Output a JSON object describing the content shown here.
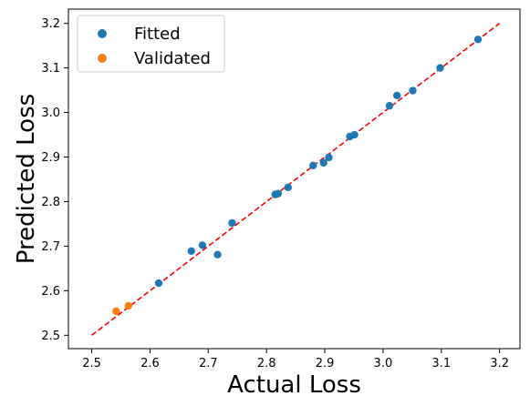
{
  "chart_data": {
    "type": "scatter",
    "title": "",
    "xlabel": "Actual Loss",
    "ylabel": "Predicted Loss",
    "xlim": [
      2.46,
      3.235
    ],
    "ylim": [
      2.47,
      3.232
    ],
    "xticks": [
      "2.5",
      "2.6",
      "2.7",
      "2.8",
      "2.9",
      "3.0",
      "3.1",
      "3.2"
    ],
    "yticks": [
      "2.5",
      "2.6",
      "2.7",
      "2.8",
      "2.9",
      "3.0",
      "3.1",
      "3.2"
    ],
    "grid": false,
    "legend_position": "top-left",
    "reference_line": {
      "x": [
        2.5,
        3.2
      ],
      "y": [
        2.5,
        3.2
      ],
      "color": "#ff0000",
      "style": "dashed"
    },
    "series": [
      {
        "name": "Fitted",
        "color": "#1f77b4",
        "points": [
          [
            2.615,
            2.617
          ],
          [
            2.671,
            2.689
          ],
          [
            2.69,
            2.702
          ],
          [
            2.716,
            2.681
          ],
          [
            2.741,
            2.752
          ],
          [
            2.815,
            2.816
          ],
          [
            2.82,
            2.818
          ],
          [
            2.837,
            2.832
          ],
          [
            2.88,
            2.881
          ],
          [
            2.898,
            2.887
          ],
          [
            2.907,
            2.899
          ],
          [
            2.943,
            2.946
          ],
          [
            2.951,
            2.95
          ],
          [
            3.011,
            3.015
          ],
          [
            3.024,
            3.038
          ],
          [
            3.051,
            3.049
          ],
          [
            3.098,
            3.1
          ],
          [
            3.163,
            3.164
          ]
        ]
      },
      {
        "name": "Validated",
        "color": "#ff7f0e",
        "points": [
          [
            2.542,
            2.554
          ],
          [
            2.563,
            2.566
          ]
        ]
      }
    ]
  }
}
